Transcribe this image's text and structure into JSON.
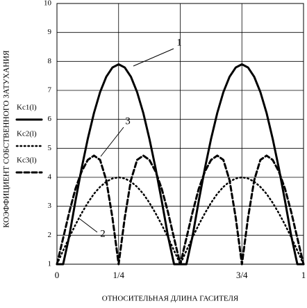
{
  "chart_data": {
    "type": "line",
    "ylabel": "КОЭФФИЦИЕНТ СОБСТВЕННОГО ЗАТУХАНИЯ",
    "xlabel": "ОТНОСИТЕЛЬНАЯ ДЛИНА ГАСИТЕЛЯ",
    "x": [
      0,
      0.025,
      0.05,
      0.075,
      0.1,
      0.125,
      0.15,
      0.175,
      0.2,
      0.225,
      0.25,
      0.275,
      0.3,
      0.325,
      0.35,
      0.375,
      0.4,
      0.425,
      0.45,
      0.475,
      0.5,
      0.525,
      0.55,
      0.575,
      0.6,
      0.625,
      0.65,
      0.675,
      0.7,
      0.725,
      0.75,
      0.775,
      0.8,
      0.825,
      0.85,
      0.875,
      0.9,
      0.925,
      0.95,
      0.975,
      1
    ],
    "series": [
      {
        "name": "Kc1(l)",
        "color": "#000000",
        "dash": "solid",
        "values": [
          1,
          1,
          1.98,
          3.18,
          4.31,
          5.33,
          6.22,
          6.94,
          7.47,
          7.79,
          7.9,
          7.79,
          7.47,
          6.94,
          6.22,
          5.33,
          4.31,
          3.18,
          1.98,
          1,
          1,
          1,
          1.98,
          3.18,
          4.31,
          5.33,
          6.22,
          6.94,
          7.47,
          7.79,
          7.9,
          7.79,
          7.47,
          6.94,
          6.22,
          5.33,
          4.31,
          3.18,
          1.98,
          1,
          1
        ]
      },
      {
        "name": "Kc2(l)",
        "color": "#000000",
        "dash": "dotted",
        "values": [
          1,
          1.47,
          1.93,
          2.36,
          2.76,
          3.12,
          3.43,
          3.67,
          3.85,
          3.96,
          4,
          3.96,
          3.85,
          3.67,
          3.43,
          3.12,
          2.76,
          2.36,
          1.93,
          1.47,
          1,
          1.47,
          1.93,
          2.36,
          2.76,
          3.12,
          3.43,
          3.67,
          3.85,
          3.96,
          4,
          3.96,
          3.85,
          3.67,
          3.43,
          3.12,
          2.76,
          2.36,
          1.93,
          1.47,
          1
        ]
      },
      {
        "name": "Kc3(l)",
        "color": "#000000",
        "dash": "dashed",
        "values": [
          1,
          1.9,
          2.8,
          3.6,
          4.2,
          4.6,
          4.75,
          4.6,
          3.9,
          2.6,
          1,
          2.6,
          3.9,
          4.6,
          4.75,
          4.6,
          4.2,
          3.6,
          2.8,
          1.9,
          1,
          1.9,
          2.8,
          3.6,
          4.2,
          4.6,
          4.75,
          4.6,
          3.9,
          2.6,
          1,
          2.6,
          3.9,
          4.6,
          4.75,
          4.6,
          4.2,
          3.6,
          2.8,
          1.9,
          1
        ]
      }
    ],
    "annotations": [
      "1",
      "3",
      "2"
    ],
    "xlim": [
      0,
      1
    ],
    "ylim": [
      1,
      10
    ],
    "xticks": [
      0,
      {
        "value": 0.25,
        "label": "1/4"
      },
      {
        "value": 0.75,
        "label": "3/4"
      },
      1
    ],
    "x_grid_lines": [
      0.25,
      0.5,
      0.75
    ],
    "yticks": [
      1,
      2,
      3,
      4,
      5,
      6,
      7,
      8,
      9,
      10
    ],
    "grid": true
  }
}
